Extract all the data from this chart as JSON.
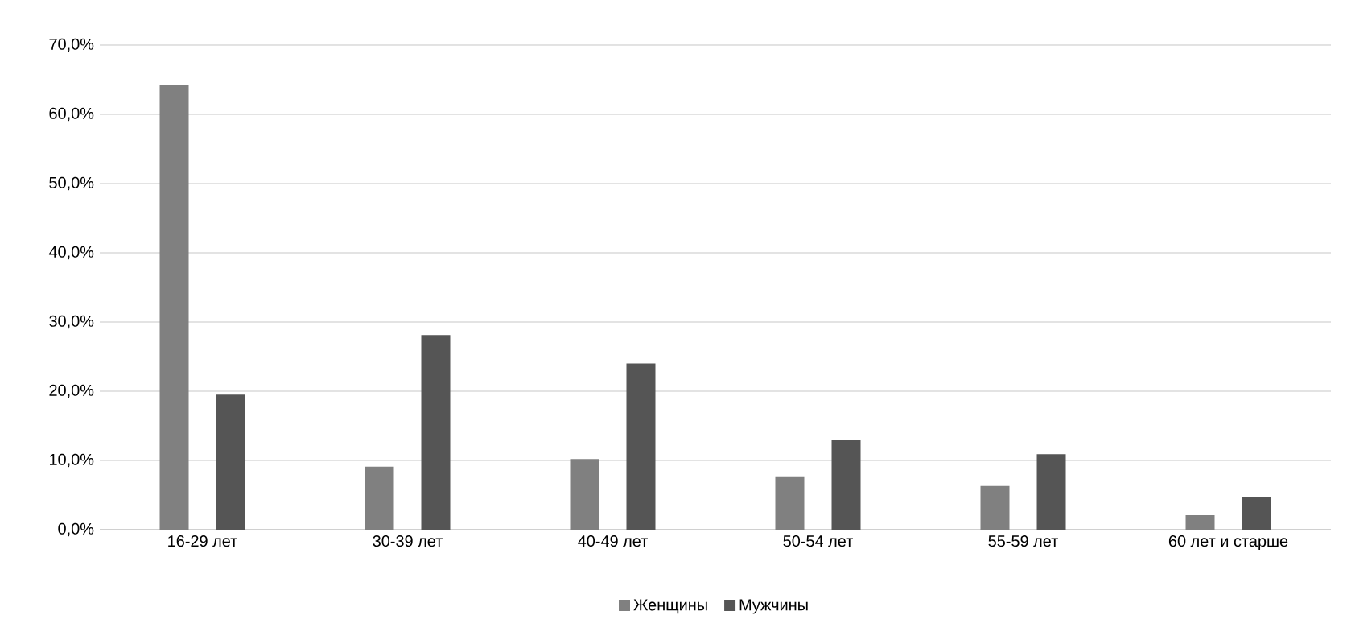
{
  "chart_data": {
    "type": "bar",
    "categories": [
      "16-29 лет",
      "30-39 лет",
      "40-49 лет",
      "50-54 лет",
      "55-59 лет",
      "60 лет и старше"
    ],
    "series": [
      {
        "name": "Женщины",
        "color": "#808080",
        "values": [
          64.3,
          9.1,
          10.2,
          7.7,
          6.3,
          2.1
        ]
      },
      {
        "name": "Мужчины",
        "color": "#555555",
        "values": [
          19.5,
          28.1,
          24.0,
          13.0,
          10.9,
          4.7
        ]
      }
    ],
    "ylim": [
      0,
      70
    ],
    "yticks": [
      {
        "value": 0,
        "label": "0,0%"
      },
      {
        "value": 10,
        "label": "10,0%"
      },
      {
        "value": 20,
        "label": "20,0%"
      },
      {
        "value": 30,
        "label": "30,0%"
      },
      {
        "value": 40,
        "label": "40,0%"
      },
      {
        "value": 50,
        "label": "50,0%"
      },
      {
        "value": 60,
        "label": "60,0%"
      },
      {
        "value": 70,
        "label": "70,0%"
      }
    ],
    "grid": "y",
    "legend": "bottom"
  }
}
